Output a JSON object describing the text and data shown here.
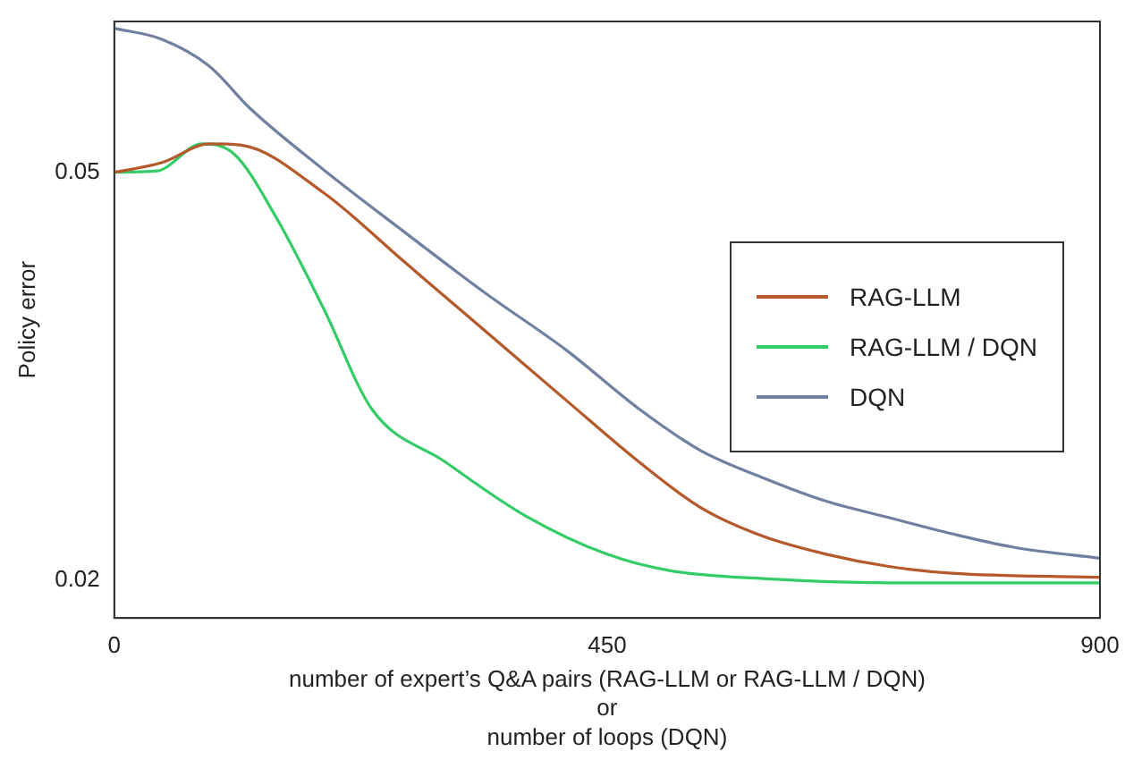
{
  "chart_data": {
    "type": "line",
    "xlabel": "number of expert’s Q&A pairs (RAG-LLM or RAG-LLM / DQN)\nor\nnumber of loops (DQN)",
    "ylabel": "Policy error",
    "xlim": [
      0,
      900
    ],
    "xticks": [
      0,
      450,
      900
    ],
    "ylim": [
      0.0172,
      0.0611
    ],
    "yticks": [
      0.02,
      0.05
    ],
    "grid": false,
    "legend": "right",
    "marker": "none",
    "line_style": "solid",
    "series": [
      {
        "name": "RAG-LLM",
        "color": "#b5582a",
        "x": [
          0,
          43,
          87,
          116,
          191,
          265,
          339,
          413,
          479,
          536,
          593,
          650,
          707,
          765,
          900
        ],
        "values": [
          0.05,
          0.0507,
          0.0521,
          0.052,
          0.0485,
          0.0434,
          0.0383,
          0.0332,
          0.0287,
          0.0253,
          0.0232,
          0.0219,
          0.021,
          0.0205,
          0.0202
        ]
      },
      {
        "name": "RAG-LLM / DQN",
        "color": "#33cc66",
        "x": [
          0,
          39,
          80,
          110,
          147,
          191,
          235,
          302,
          376,
          450,
          507,
          593,
          707,
          900
        ],
        "values": [
          0.05,
          0.0501,
          0.0521,
          0.0513,
          0.0468,
          0.04,
          0.0326,
          0.0287,
          0.0247,
          0.0219,
          0.0207,
          0.0201,
          0.0198,
          0.0198
        ]
      },
      {
        "name": "DQN",
        "color": "#7080a0",
        "x": [
          0,
          43,
          87,
          124,
          191,
          265,
          339,
          413,
          479,
          536,
          593,
          650,
          707,
          765,
          822,
          900
        ],
        "values": [
          0.0606,
          0.0598,
          0.0578,
          0.0547,
          0.0502,
          0.0456,
          0.0411,
          0.0369,
          0.0326,
          0.0295,
          0.0275,
          0.0258,
          0.0246,
          0.0234,
          0.0224,
          0.0216
        ]
      }
    ]
  }
}
